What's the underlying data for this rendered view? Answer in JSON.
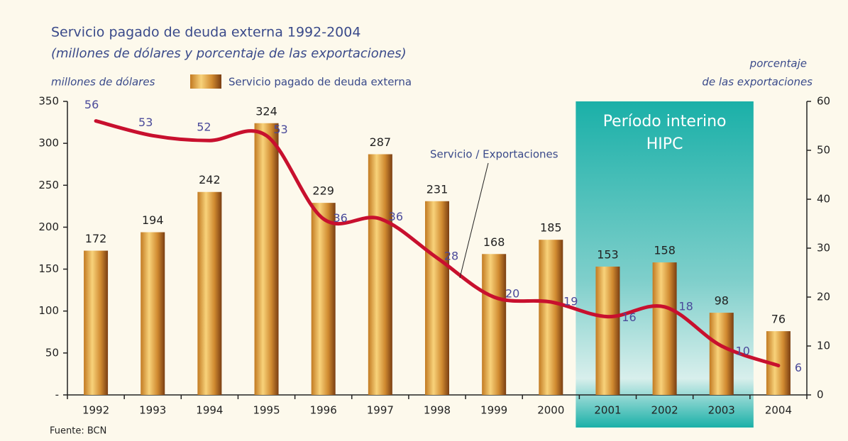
{
  "chart_data": {
    "type": "bar_line",
    "title": "Servicio pagado de deuda externa 1992-2004",
    "subtitle": "(millones de dólares y porcentaje de las exportaciones)",
    "y_label": "millones de dólares",
    "y2_label": [
      "porcentaje",
      "de las exportaciones"
    ],
    "source": "Fuente: BCN",
    "categories": [
      "1992",
      "1993",
      "1994",
      "1995",
      "1996",
      "1997",
      "1998",
      "1999",
      "2000",
      "2001",
      "2002",
      "2003",
      "2004"
    ],
    "series": [
      {
        "name": "Servicio pagado de deuda externa",
        "type": "bar",
        "color": "#e0a040",
        "values": [
          172,
          194,
          242,
          324,
          229,
          287,
          231,
          168,
          185,
          153,
          158,
          98,
          76
        ]
      },
      {
        "type": "line",
        "axis": "y2",
        "color": "#c8102e",
        "values": [
          56,
          53,
          52,
          53,
          36,
          36,
          28,
          20,
          19,
          16,
          18,
          10,
          6
        ]
      }
    ],
    "annotation": "Servicio / Exportaciones",
    "highlight": {
      "label": [
        "Período interino",
        "HIPC"
      ],
      "from": "2001",
      "to": "2003",
      "color": "#1fb5ad"
    },
    "ylim": [
      0,
      350
    ],
    "yticks": [
      {
        "value": 0,
        "label": "-"
      },
      50,
      100,
      150,
      200,
      250,
      300,
      350
    ],
    "y2lim": [
      0,
      60
    ],
    "y2ticks": [
      0,
      10,
      20,
      30,
      40,
      50,
      60
    ]
  }
}
